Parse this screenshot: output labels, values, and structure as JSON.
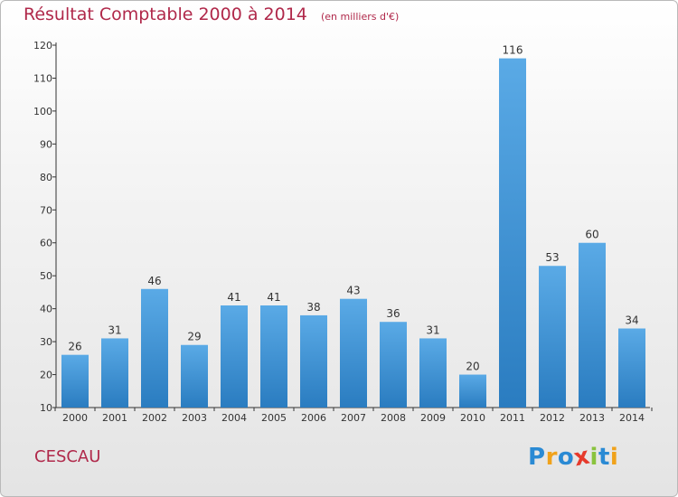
{
  "title": "Résultat Comptable 2000 à 2014",
  "unit_note": "(en milliers d'€)",
  "place": "CESCAU",
  "logo": {
    "text": "Proxiti",
    "letters": [
      {
        "ch": "P",
        "color": "#2a8ad4"
      },
      {
        "ch": "r",
        "color": "#f0a21b"
      },
      {
        "ch": "o",
        "color": "#2a8ad4"
      },
      {
        "ch": "x",
        "color": "#e63a2c"
      },
      {
        "ch": "i",
        "color": "#8ac33e"
      },
      {
        "ch": "t",
        "color": "#2a8ad4"
      },
      {
        "ch": "i",
        "color": "#f0a21b"
      }
    ]
  },
  "colors": {
    "bar_top": "#5aaae6",
    "bar_bottom": "#2a7cc0",
    "title": "#b0284a",
    "axis": "#333333"
  },
  "chart_data": {
    "type": "bar",
    "title": "Résultat Comptable 2000 à 2014",
    "subtitle": "(en milliers d'€)",
    "xlabel": "",
    "ylabel": "",
    "categories": [
      "2000",
      "2001",
      "2002",
      "2003",
      "2004",
      "2005",
      "2006",
      "2007",
      "2008",
      "2009",
      "2010",
      "2011",
      "2012",
      "2013",
      "2014"
    ],
    "values": [
      26,
      31,
      46,
      29,
      41,
      41,
      38,
      43,
      36,
      31,
      20,
      116,
      53,
      60,
      34
    ],
    "ylim": [
      10,
      120
    ],
    "yticks": [
      10,
      20,
      30,
      40,
      50,
      60,
      70,
      80,
      90,
      100,
      110,
      120
    ],
    "grid": false,
    "data_labels": true
  }
}
